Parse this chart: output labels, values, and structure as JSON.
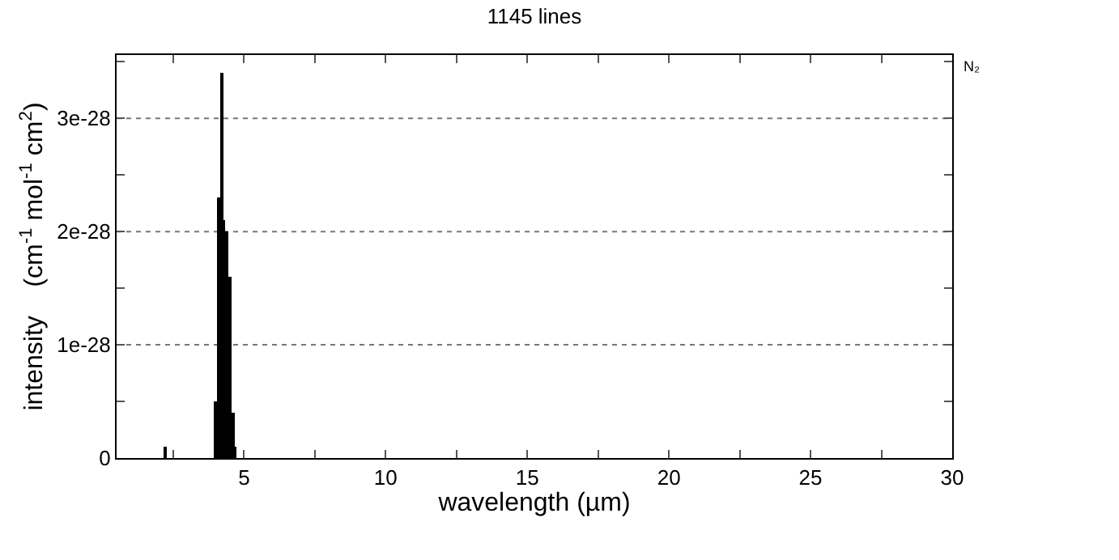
{
  "chart_data": {
    "type": "bar",
    "title": "1145 lines",
    "xlabel": "wavelength (µm)",
    "ylabel": "intensity    (cm$^{-1}$ mol$^{-1}$ cm$^{2}$)",
    "annotations": [
      "N₂"
    ],
    "x": [
      2.2,
      4.0,
      4.1,
      4.2,
      4.3,
      4.4,
      4.5,
      4.6,
      4.7
    ],
    "series": [
      {
        "color": "#000000",
        "values": [
          1e-29,
          5e-29,
          2.3e-28,
          3.4e-28,
          2.1e-28,
          2e-28,
          1.6e-28,
          4e-29,
          1e-29
        ]
      }
    ],
    "xlim": [
      0.5,
      30
    ],
    "xticks": [
      {
        "value": 2.5,
        "label": null
      },
      5,
      {
        "value": 7.5,
        "label": null
      },
      10,
      {
        "value": 12.5,
        "label": null
      },
      15,
      {
        "value": 17.5,
        "label": null
      },
      20,
      {
        "value": 22.5,
        "label": null
      },
      25,
      {
        "value": 27.5,
        "label": null
      },
      30
    ],
    "ylim": [
      0,
      3.56e-28
    ],
    "yticks": [
      0,
      {
        "value": 5e-29,
        "label": null
      },
      {
        "value": 1e-28,
        "label": "1e-28"
      },
      {
        "value": 1.5e-28,
        "label": null
      },
      {
        "value": 2e-28,
        "label": "2e-28"
      },
      {
        "value": 2.5e-28,
        "label": null
      },
      {
        "value": 3e-28,
        "label": "3e-28"
      },
      {
        "value": 3.5e-28,
        "label": null
      }
    ],
    "grid": "y"
  }
}
